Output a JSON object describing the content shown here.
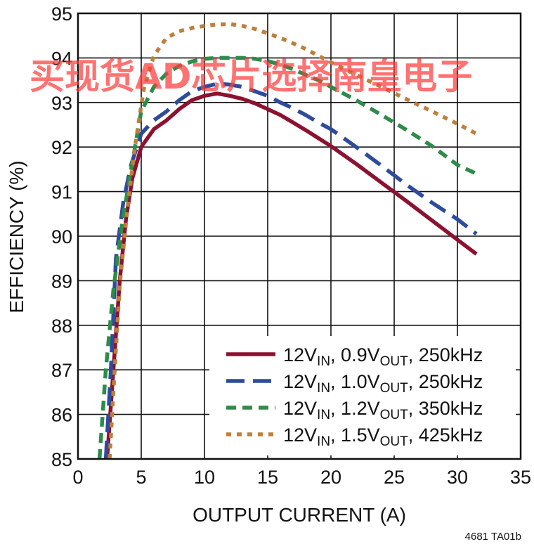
{
  "chart_data": {
    "type": "line",
    "title": "",
    "xlabel": "OUTPUT CURRENT (A)",
    "ylabel": "EFFICIENCY (%)",
    "xlim": [
      0,
      35
    ],
    "ylim": [
      85,
      95
    ],
    "xticks": [
      0,
      5,
      10,
      15,
      20,
      25,
      30,
      35
    ],
    "yticks": [
      85,
      86,
      87,
      88,
      89,
      90,
      91,
      92,
      93,
      94,
      95
    ],
    "grid": true,
    "legend_position": "bottom-right",
    "series": [
      {
        "name": "12VIN, 0.9VOUT, 250kHz",
        "legend": {
          "a": "12V",
          "a_sub": "IN",
          "b": ", 0.9V",
          "b_sub": "OUT",
          "c": ", 250kHz"
        },
        "color": "#8c1230",
        "dash": "solid",
        "points": [
          [
            2.3,
            85.0
          ],
          [
            2.8,
            87.0
          ],
          [
            3.3,
            89.0
          ],
          [
            3.8,
            90.4
          ],
          [
            4.3,
            91.3
          ],
          [
            5.0,
            92.0
          ],
          [
            6.0,
            92.4
          ],
          [
            7.0,
            92.6
          ],
          [
            8.0,
            92.85
          ],
          [
            9.0,
            93.05
          ],
          [
            10.0,
            93.15
          ],
          [
            11.0,
            93.2
          ],
          [
            12.0,
            93.15
          ],
          [
            13.0,
            93.08
          ],
          [
            14.0,
            92.98
          ],
          [
            15.0,
            92.85
          ],
          [
            16.0,
            92.72
          ],
          [
            17.0,
            92.55
          ],
          [
            18.0,
            92.38
          ],
          [
            19.0,
            92.2
          ],
          [
            20.0,
            92.02
          ],
          [
            22.0,
            91.62
          ],
          [
            24.0,
            91.2
          ],
          [
            26.0,
            90.78
          ],
          [
            28.0,
            90.35
          ],
          [
            30.0,
            89.92
          ],
          [
            31.5,
            89.6
          ]
        ]
      },
      {
        "name": "12VIN, 1.0VOUT, 250kHz",
        "legend": {
          "a": "12V",
          "a_sub": "IN",
          "b": ", 1.0V",
          "b_sub": "OUT",
          "c": ", 250kHz"
        },
        "color": "#2e4b9c",
        "dash": "long",
        "points": [
          [
            2.2,
            85.0
          ],
          [
            2.6,
            87.0
          ],
          [
            3.0,
            89.5
          ],
          [
            3.6,
            90.8
          ],
          [
            4.2,
            91.6
          ],
          [
            5.0,
            92.3
          ],
          [
            6.0,
            92.6
          ],
          [
            7.0,
            92.8
          ],
          [
            8.0,
            93.05
          ],
          [
            9.0,
            93.25
          ],
          [
            10.0,
            93.35
          ],
          [
            11.0,
            93.42
          ],
          [
            12.0,
            93.4
          ],
          [
            13.0,
            93.35
          ],
          [
            14.0,
            93.25
          ],
          [
            15.0,
            93.15
          ],
          [
            16.0,
            93.0
          ],
          [
            17.0,
            92.87
          ],
          [
            18.0,
            92.72
          ],
          [
            19.0,
            92.55
          ],
          [
            20.0,
            92.4
          ],
          [
            22.0,
            92.0
          ],
          [
            24.0,
            91.58
          ],
          [
            26.0,
            91.15
          ],
          [
            28.0,
            90.75
          ],
          [
            30.0,
            90.38
          ],
          [
            31.5,
            90.05
          ]
        ]
      },
      {
        "name": "12VIN, 1.2VOUT, 350kHz",
        "legend": {
          "a": "12V",
          "a_sub": "IN",
          "b": ", 1.2V",
          "b_sub": "OUT",
          "c": ", 350kHz"
        },
        "color": "#2e8b4a",
        "dash": "medium",
        "points": [
          [
            1.7,
            85.0
          ],
          [
            2.2,
            87.0
          ],
          [
            2.8,
            88.8
          ],
          [
            3.5,
            90.3
          ],
          [
            4.2,
            91.5
          ],
          [
            5.0,
            92.8
          ],
          [
            6.0,
            93.35
          ],
          [
            7.0,
            93.65
          ],
          [
            8.0,
            93.82
          ],
          [
            9.0,
            93.92
          ],
          [
            10.0,
            93.98
          ],
          [
            11.0,
            94.0
          ],
          [
            12.0,
            94.0
          ],
          [
            13.0,
            94.0
          ],
          [
            14.0,
            93.98
          ],
          [
            15.0,
            93.93
          ],
          [
            16.0,
            93.85
          ],
          [
            17.0,
            93.75
          ],
          [
            18.0,
            93.62
          ],
          [
            19.0,
            93.5
          ],
          [
            20.0,
            93.35
          ],
          [
            22.0,
            93.05
          ],
          [
            24.0,
            92.72
          ],
          [
            26.0,
            92.38
          ],
          [
            28.0,
            92.02
          ],
          [
            30.0,
            91.6
          ],
          [
            31.5,
            91.4
          ]
        ]
      },
      {
        "name": "12VIN, 1.5VOUT, 425kHz",
        "legend": {
          "a": "12V",
          "a_sub": "IN",
          "b": ", 1.5V",
          "b_sub": "OUT",
          "c": ", 425kHz"
        },
        "color": "#bf7f3c",
        "dash": "dotted",
        "points": [
          [
            2.5,
            85.0
          ],
          [
            2.9,
            87.0
          ],
          [
            3.3,
            88.9
          ],
          [
            3.9,
            90.6
          ],
          [
            4.5,
            92.0
          ],
          [
            5.2,
            93.3
          ],
          [
            6.0,
            94.05
          ],
          [
            7.0,
            94.45
          ],
          [
            8.0,
            94.6
          ],
          [
            9.0,
            94.67
          ],
          [
            10.0,
            94.72
          ],
          [
            11.0,
            94.75
          ],
          [
            12.0,
            94.76
          ],
          [
            13.0,
            94.72
          ],
          [
            14.0,
            94.65
          ],
          [
            15.0,
            94.55
          ],
          [
            16.0,
            94.45
          ],
          [
            17.0,
            94.33
          ],
          [
            18.0,
            94.2
          ],
          [
            19.0,
            94.05
          ],
          [
            20.0,
            93.9
          ],
          [
            22.0,
            93.62
          ],
          [
            24.0,
            93.35
          ],
          [
            26.0,
            93.07
          ],
          [
            28.0,
            92.8
          ],
          [
            30.0,
            92.52
          ],
          [
            31.5,
            92.3
          ]
        ]
      }
    ]
  },
  "figure_id": "4681 TA01b",
  "watermark": "买现货AD芯片选择南皇电子"
}
